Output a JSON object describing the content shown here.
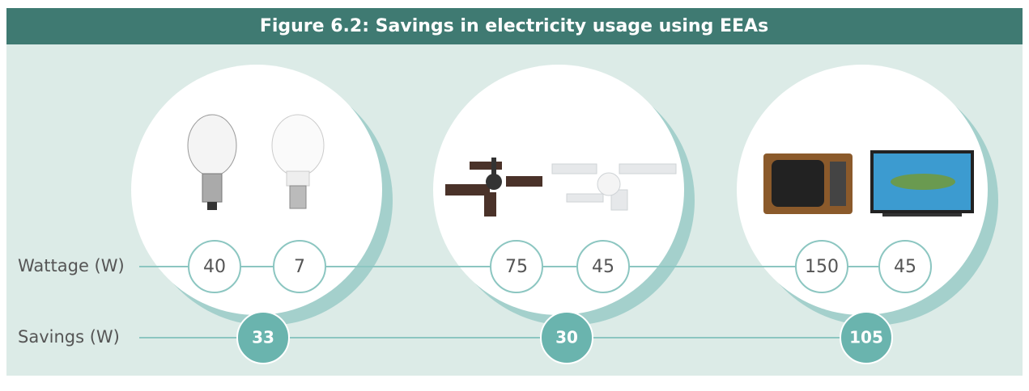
{
  "title": "Figure 6.2: Savings in electricity usage using EEAs",
  "rows": {
    "wattage": "Wattage (W)",
    "savings": "Savings (W)"
  },
  "groups": [
    {
      "wattage": [
        40,
        7
      ],
      "savings": 33
    },
    {
      "wattage": [
        75,
        45
      ],
      "savings": 30
    },
    {
      "wattage": [
        150,
        45
      ],
      "savings": 105
    }
  ]
}
